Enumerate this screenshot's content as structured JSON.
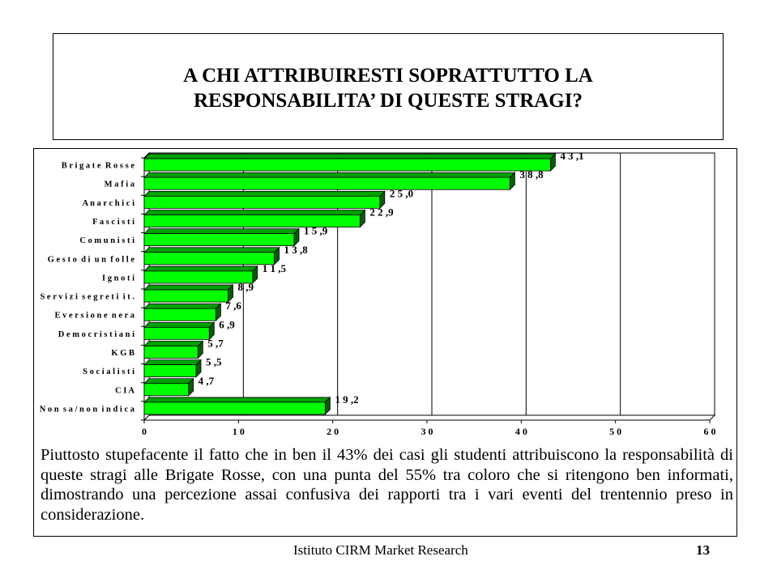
{
  "slide": {
    "title": "A CHI ATTRIBUIRESTI SOPRATTUTTO LA\nRESPONSABILITA’ DI QUESTE STRAGI?",
    "commentary": "Piuttosto stupefacente il fatto che in ben il 43% dei casi gli studenti attribuiscono la responsabilità di queste stragi alle Brigate Rosse, con una punta del 55% tra coloro che si ritengono ben informati, dimostrando una percezione assai confusiva dei rapporti tra i vari eventi del trentennio preso in considerazione.",
    "footer": "Istituto CIRM Market Research",
    "page_number": "13"
  },
  "colors": {
    "bar_face": "#00ff00",
    "bar_top": "#00a000",
    "bar_side": "#006000",
    "gridline": "#000000"
  },
  "chart_data": {
    "type": "bar",
    "orientation": "horizontal",
    "title": "",
    "xlabel": "",
    "ylabel": "",
    "xlim": [
      0,
      60
    ],
    "xticks": [
      "0",
      "1 0",
      "2 0",
      "3 0",
      "4 0",
      "5 0",
      "6 0"
    ],
    "grid": true,
    "categories": [
      "B r i g a t e  R o s s e",
      "M a f i a",
      "A n a r c h i c i",
      "F a s c i s t i",
      "C o m u n i s t i",
      "G e s t o  d i  u n  f o l l e",
      "I g n o t i",
      "S e r v i z i  s e g r e t i  i t .",
      "E v e r s i o n e  n e r a",
      "D e m o c r i s t i a n i",
      "K G B",
      "S o c i a l i s t i",
      "C I A",
      "N o n  s a / n o n  i n d i c a"
    ],
    "values": [
      43.1,
      38.8,
      25.0,
      22.9,
      15.9,
      13.8,
      11.5,
      8.9,
      7.6,
      6.9,
      5.7,
      5.5,
      4.7,
      19.2
    ],
    "data_labels": [
      "4 3 ,1",
      "3 8 ,8",
      "2 5 ,0",
      "2 2 ,9",
      "1 5 ,9",
      "1 3 ,8",
      "1 1 ,5",
      "8 ,9",
      "7 ,6",
      "6 ,9",
      "5 ,7",
      "5 ,5",
      "4 ,7",
      "1 9 ,2"
    ]
  }
}
